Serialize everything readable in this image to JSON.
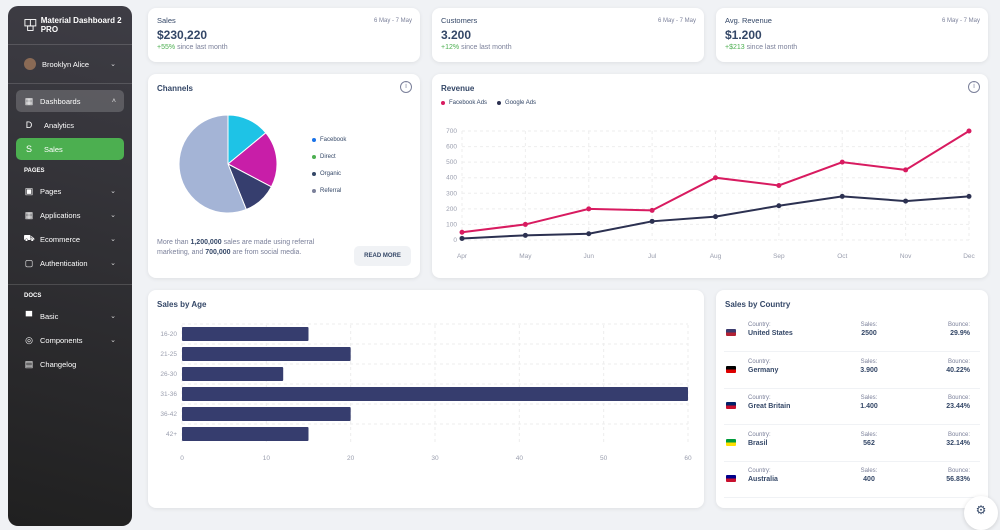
{
  "sidebar": {
    "brand": "Material Dashboard 2 PRO",
    "user": "Brooklyn Alice",
    "dashboards": "Dashboards",
    "sub": [
      {
        "letter": "D",
        "label": "Analytics"
      },
      {
        "letter": "S",
        "label": "Sales"
      }
    ],
    "pages_heading": "PAGES",
    "pages": [
      "Pages",
      "Applications",
      "Ecommerce",
      "Authentication"
    ],
    "docs_heading": "DOCS",
    "docs": [
      "Basic",
      "Components",
      "Changelog"
    ],
    "accent": "#4caf50"
  },
  "stats": [
    {
      "label": "Sales",
      "date": "6 May - 7 May",
      "value": "$230,220",
      "change": "+55%",
      "change_text": "since last month"
    },
    {
      "label": "Customers",
      "date": "6 May - 7 May",
      "value": "3.200",
      "change": "+12%",
      "change_text": "since last month"
    },
    {
      "label": "Avg. Revenue",
      "date": "6 May - 7 May",
      "value": "$1.200",
      "change": "+$213",
      "change_text": "since last month"
    }
  ],
  "channels": {
    "title": "Channels",
    "text_1": "More than ",
    "bold_1": "1,200,000",
    "text_2": " sales are made using referral marketing, and ",
    "bold_2": "700,000",
    "text_3": " are from social media.",
    "button": "READ MORE"
  },
  "revenue": {
    "title": "Revenue"
  },
  "sales_by_age": {
    "title": "Sales by Age"
  },
  "countries": {
    "title": "Sales by Country",
    "country_label": "Country:",
    "sales_label": "Sales:",
    "bounce_label": "Bounce:",
    "rows": [
      {
        "country": "United States",
        "sales": "2500",
        "bounce": "29.9%"
      },
      {
        "country": "Germany",
        "sales": "3.900",
        "bounce": "40.22%"
      },
      {
        "country": "Great Britain",
        "sales": "1.400",
        "bounce": "23.44%"
      },
      {
        "country": "Brasil",
        "sales": "562",
        "bounce": "32.14%"
      },
      {
        "country": "Australia",
        "sales": "400",
        "bounce": "56.83%"
      }
    ]
  },
  "chart_data": [
    {
      "type": "pie",
      "categories": [
        "Facebook",
        "Direct",
        "Organic",
        "Referral"
      ],
      "values": [
        15,
        20,
        12,
        60
      ],
      "colors": [
        "#1ec3e6",
        "#c81ea8",
        "#363e6e",
        "#a4b4d6"
      ],
      "legend_colors": [
        "#1a73e8",
        "#4caf50",
        "#344767",
        "#7b809a"
      ],
      "legend": "right"
    },
    {
      "type": "line",
      "categories": [
        "Apr",
        "May",
        "Jun",
        "Jul",
        "Aug",
        "Sep",
        "Oct",
        "Nov",
        "Dec"
      ],
      "ylim": [
        0,
        700
      ],
      "yticks": [
        0,
        100,
        200,
        300,
        400,
        500,
        600,
        700
      ],
      "grid": true,
      "legend": "top-left",
      "series": [
        {
          "name": "Facebook Ads",
          "color": "#d81b60",
          "values": [
            50,
            100,
            200,
            190,
            400,
            350,
            500,
            450,
            700
          ]
        },
        {
          "name": "Google Ads",
          "color": "#2c3151",
          "values": [
            10,
            30,
            40,
            120,
            150,
            220,
            280,
            250,
            280
          ]
        }
      ]
    },
    {
      "type": "bar",
      "orientation": "horizontal",
      "categories": [
        "16-20",
        "21-25",
        "26-30",
        "31-36",
        "36-42",
        "42+"
      ],
      "values": [
        15,
        20,
        12,
        60,
        20,
        15
      ],
      "xlim": [
        0,
        60
      ],
      "xticks": [
        0,
        10,
        20,
        30,
        40,
        50,
        60
      ],
      "color": "#363d6e",
      "grid": true
    }
  ]
}
